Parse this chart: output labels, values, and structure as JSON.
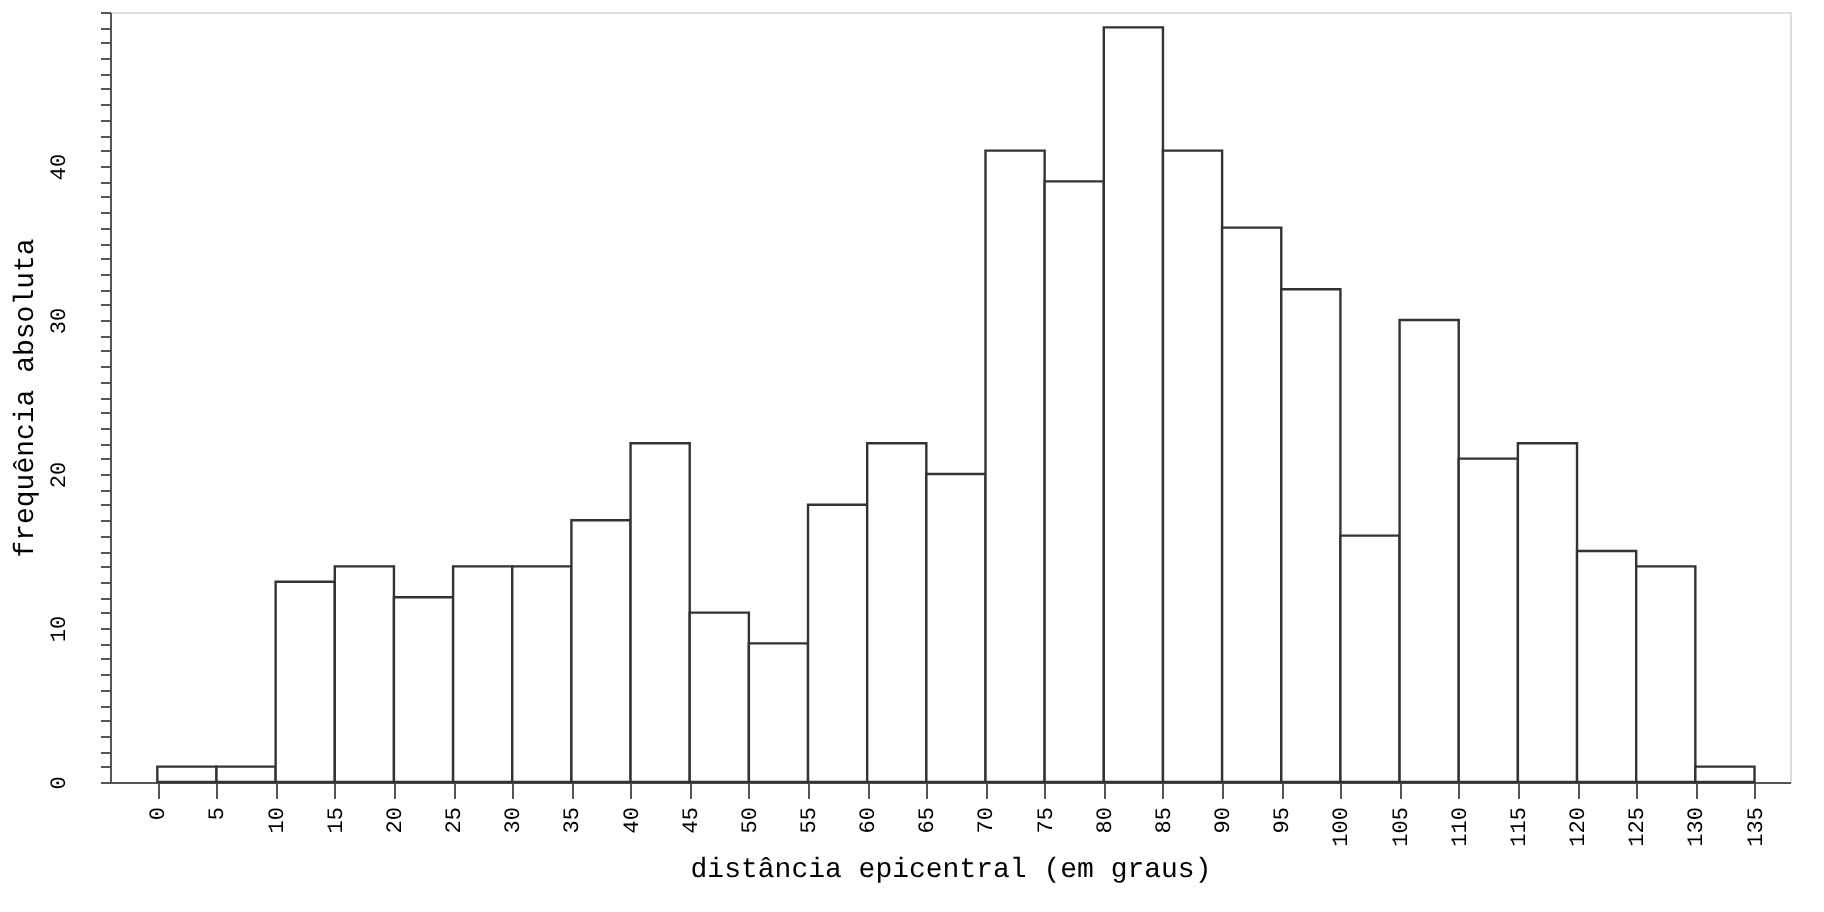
{
  "chart_data": {
    "type": "histogram",
    "xlabel": "distância epicentral (em graus)",
    "ylabel": "frequência absoluta",
    "bins": [
      0,
      5,
      10,
      15,
      20,
      25,
      30,
      35,
      40,
      45,
      50,
      55,
      60,
      65,
      70,
      75,
      80,
      85,
      90,
      95,
      100,
      105,
      110,
      115,
      120,
      125,
      130,
      135
    ],
    "values": [
      1,
      1,
      13,
      14,
      12,
      14,
      14,
      17,
      22,
      11,
      9,
      18,
      22,
      20,
      41,
      39,
      49,
      41,
      36,
      32,
      16,
      30,
      21,
      22,
      15,
      14,
      1
    ],
    "color": "#ffffff",
    "xlim": [
      -4,
      138
    ],
    "xticks": [
      0,
      5,
      10,
      15,
      20,
      25,
      30,
      35,
      40,
      45,
      50,
      55,
      60,
      65,
      70,
      75,
      80,
      85,
      90,
      95,
      100,
      105,
      110,
      115,
      120,
      125,
      130,
      135
    ],
    "ylim": [
      0,
      50
    ],
    "yticks": [
      0,
      {
        "value": 1,
        "label": null
      },
      {
        "value": 2,
        "label": null
      },
      {
        "value": 3,
        "label": null
      },
      {
        "value": 4,
        "label": null
      },
      {
        "value": 5,
        "label": null
      },
      {
        "value": 6,
        "label": null
      },
      {
        "value": 7,
        "label": null
      },
      {
        "value": 8,
        "label": null
      },
      {
        "value": 9,
        "label": null
      },
      10,
      {
        "value": 11,
        "label": null
      },
      {
        "value": 12,
        "label": null
      },
      {
        "value": 13,
        "label": null
      },
      {
        "value": 14,
        "label": null
      },
      {
        "value": 15,
        "label": null
      },
      {
        "value": 16,
        "label": null
      },
      {
        "value": 17,
        "label": null
      },
      {
        "value": 18,
        "label": null
      },
      {
        "value": 19,
        "label": null
      },
      20,
      {
        "value": 21,
        "label": null
      },
      {
        "value": 22,
        "label": null
      },
      {
        "value": 23,
        "label": null
      },
      {
        "value": 24,
        "label": null
      },
      {
        "value": 25,
        "label": null
      },
      {
        "value": 26,
        "label": null
      },
      {
        "value": 27,
        "label": null
      },
      {
        "value": 28,
        "label": null
      },
      {
        "value": 29,
        "label": null
      },
      30,
      {
        "value": 31,
        "label": null
      },
      {
        "value": 32,
        "label": null
      },
      {
        "value": 33,
        "label": null
      },
      {
        "value": 34,
        "label": null
      },
      {
        "value": 35,
        "label": null
      },
      {
        "value": 36,
        "label": null
      },
      {
        "value": 37,
        "label": null
      },
      {
        "value": 38,
        "label": null
      },
      {
        "value": 39,
        "label": null
      },
      40,
      {
        "value": 41,
        "label": null
      },
      {
        "value": 42,
        "label": null
      },
      {
        "value": 43,
        "label": null
      },
      {
        "value": 44,
        "label": null
      },
      {
        "value": 45,
        "label": null
      },
      {
        "value": 46,
        "label": null
      },
      {
        "value": 47,
        "label": null
      },
      {
        "value": 48,
        "label": null
      },
      {
        "value": 49,
        "label": null
      },
      {
        "value": 50,
        "label": null
      }
    ],
    "grid": false
  }
}
